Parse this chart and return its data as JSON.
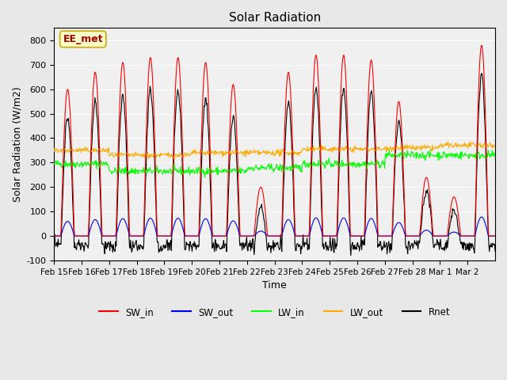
{
  "title": "Solar Radiation",
  "xlabel": "Time",
  "ylabel": "Solar Radiation (W/m2)",
  "ylim": [
    -100,
    850
  ],
  "yticks": [
    -100,
    0,
    100,
    200,
    300,
    400,
    500,
    600,
    700,
    800
  ],
  "annotation_text": "EE_met",
  "annotation_bg": "#ffffcc",
  "annotation_edge": "#ccaa00",
  "annotation_text_color": "#aa0000",
  "fig_bg_color": "#e8e8e8",
  "plot_bg": "#f0f0f0",
  "series_colors": {
    "SW_in": "#ff0000",
    "SW_out": "#0000ff",
    "LW_in": "#00ff00",
    "LW_out": "#ffaa00",
    "Rnet": "#000000"
  },
  "legend_labels": [
    "SW_in",
    "SW_out",
    "LW_in",
    "LW_out",
    "Rnet"
  ],
  "x_tick_labels": [
    "Feb 15",
    "Feb 16",
    "Feb 17",
    "Feb 18",
    "Feb 19",
    "Feb 20",
    "Feb 21",
    "Feb 22",
    "Feb 23",
    "Feb 24",
    "Feb 25",
    "Feb 26",
    "Feb 27",
    "Feb 28",
    "Mar 1",
    "Mar 2"
  ],
  "n_days": 16,
  "pts_per_day": 48
}
